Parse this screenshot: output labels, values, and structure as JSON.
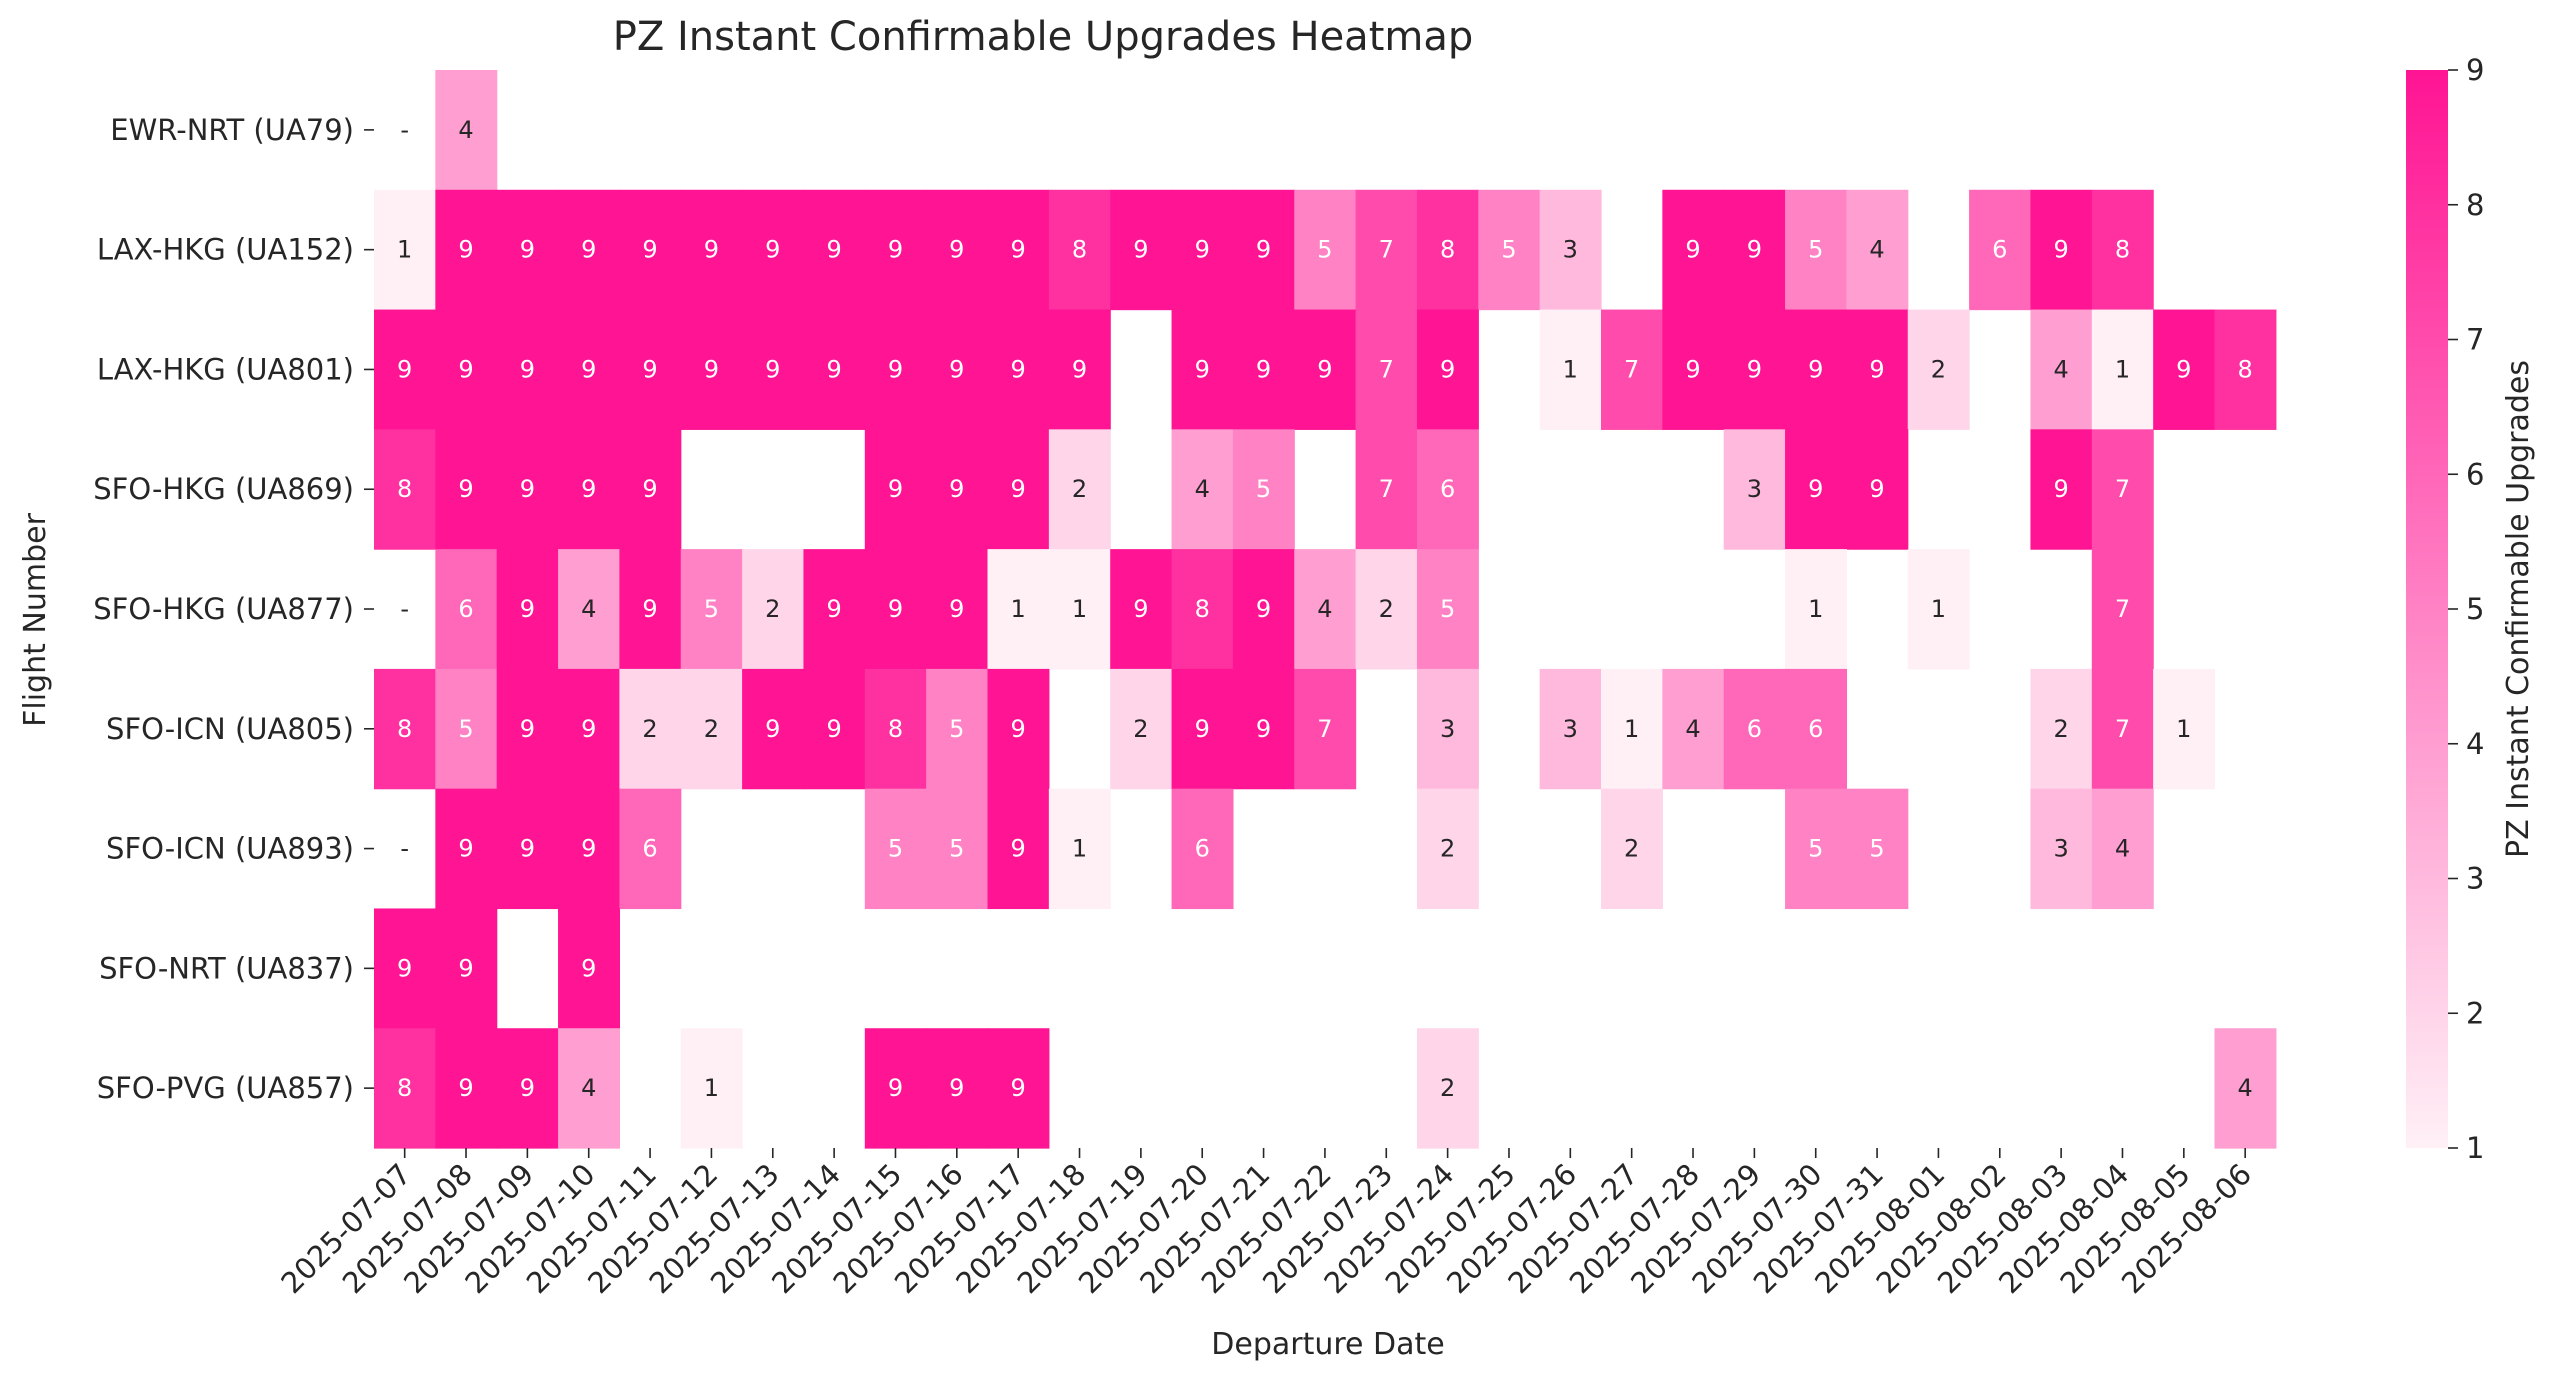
{
  "chart_data": {
    "type": "heatmap",
    "title": "PZ Instant Confirmable Upgrades Heatmap",
    "xlabel": "Departure Date",
    "ylabel": "Flight Number",
    "colorbar_label": "PZ Instant Confirmable Upgrades",
    "colorbar_range": [
      1,
      9
    ],
    "colorbar_ticks": [
      "1",
      "2",
      "3",
      "4",
      "5",
      "6",
      "7",
      "8",
      "9"
    ],
    "color_low": "#fff0f6",
    "color_high": "#ff1493",
    "missing_marker": "-",
    "x_categories": [
      "2025-07-07",
      "2025-07-08",
      "2025-07-09",
      "2025-07-10",
      "2025-07-11",
      "2025-07-12",
      "2025-07-13",
      "2025-07-14",
      "2025-07-15",
      "2025-07-16",
      "2025-07-17",
      "2025-07-18",
      "2025-07-19",
      "2025-07-20",
      "2025-07-21",
      "2025-07-22",
      "2025-07-23",
      "2025-07-24",
      "2025-07-25",
      "2025-07-26",
      "2025-07-27",
      "2025-07-28",
      "2025-07-29",
      "2025-07-30",
      "2025-07-31",
      "2025-08-01",
      "2025-08-02",
      "2025-08-03",
      "2025-08-04",
      "2025-08-05",
      "2025-08-06"
    ],
    "y_categories": [
      "EWR-NRT (UA79)",
      "LAX-HKG (UA152)",
      "LAX-HKG (UA801)",
      "SFO-HKG (UA869)",
      "SFO-HKG (UA877)",
      "SFO-ICN (UA805)",
      "SFO-ICN (UA893)",
      "SFO-NRT (UA837)",
      "SFO-PVG (UA857)"
    ],
    "values": [
      [
        null,
        4,
        null,
        null,
        null,
        null,
        null,
        null,
        null,
        null,
        null,
        null,
        null,
        null,
        null,
        null,
        null,
        null,
        null,
        null,
        null,
        null,
        null,
        null,
        null,
        null,
        null,
        null,
        null,
        null,
        null
      ],
      [
        1,
        9,
        9,
        9,
        9,
        9,
        9,
        9,
        9,
        9,
        9,
        8,
        9,
        9,
        9,
        5,
        7,
        8,
        5,
        3,
        null,
        9,
        9,
        5,
        4,
        null,
        6,
        9,
        8,
        null,
        null
      ],
      [
        9,
        9,
        9,
        9,
        9,
        9,
        9,
        9,
        9,
        9,
        9,
        9,
        null,
        9,
        9,
        9,
        7,
        9,
        null,
        1,
        7,
        9,
        9,
        9,
        9,
        2,
        null,
        4,
        1,
        9,
        8
      ],
      [
        8,
        9,
        9,
        9,
        9,
        null,
        null,
        null,
        9,
        9,
        9,
        2,
        null,
        4,
        5,
        null,
        7,
        6,
        null,
        null,
        null,
        null,
        3,
        9,
        9,
        null,
        null,
        9,
        7,
        null,
        null
      ],
      [
        null,
        6,
        9,
        4,
        9,
        5,
        2,
        9,
        9,
        9,
        1,
        1,
        9,
        8,
        9,
        4,
        2,
        5,
        null,
        null,
        null,
        null,
        null,
        1,
        null,
        1,
        null,
        null,
        7,
        null,
        null
      ],
      [
        8,
        5,
        9,
        9,
        2,
        2,
        9,
        9,
        8,
        5,
        9,
        null,
        2,
        9,
        9,
        7,
        null,
        3,
        null,
        3,
        1,
        4,
        6,
        6,
        null,
        null,
        null,
        2,
        7,
        1,
        null
      ],
      [
        null,
        9,
        9,
        9,
        6,
        null,
        null,
        null,
        5,
        5,
        9,
        1,
        null,
        6,
        null,
        null,
        null,
        2,
        null,
        null,
        2,
        null,
        null,
        5,
        5,
        null,
        null,
        3,
        4,
        null,
        null
      ],
      [
        9,
        9,
        null,
        9,
        null,
        null,
        null,
        null,
        null,
        null,
        null,
        null,
        null,
        null,
        null,
        null,
        null,
        null,
        null,
        null,
        null,
        null,
        null,
        null,
        null,
        null,
        null,
        null,
        null,
        null,
        null
      ],
      [
        8,
        9,
        9,
        4,
        null,
        1,
        null,
        null,
        9,
        9,
        9,
        null,
        null,
        null,
        null,
        null,
        null,
        2,
        null,
        null,
        null,
        null,
        null,
        null,
        null,
        null,
        null,
        null,
        null,
        null,
        4
      ]
    ]
  }
}
